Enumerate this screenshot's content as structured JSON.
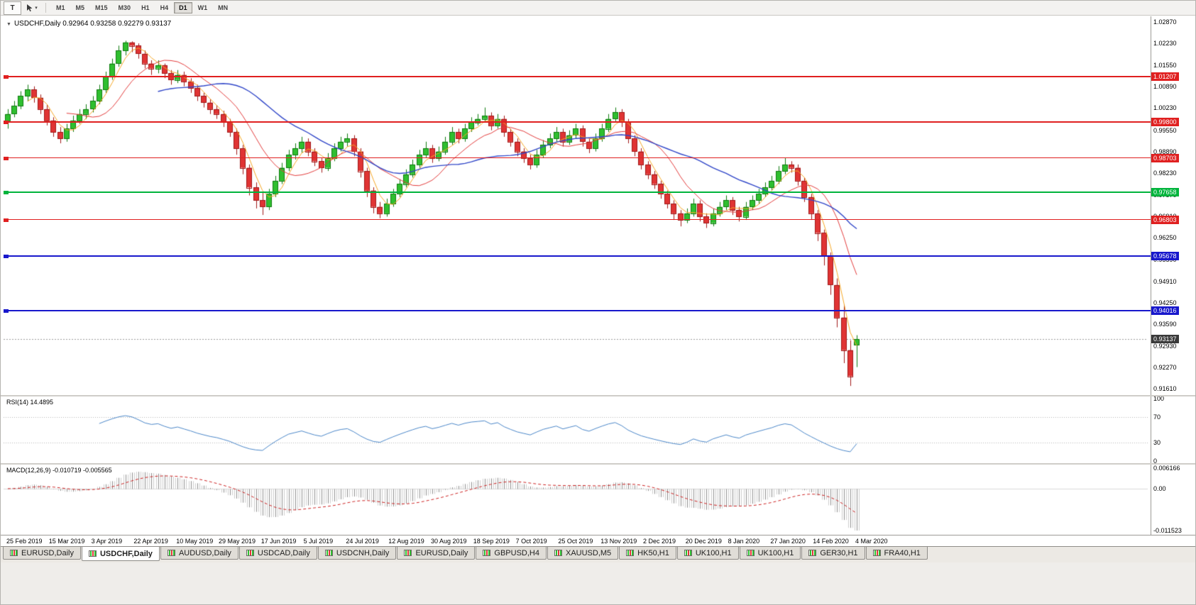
{
  "toolbar": {
    "text_tool_label": "T",
    "timeframes": [
      "M1",
      "M5",
      "M15",
      "M30",
      "H1",
      "H4",
      "D1",
      "W1",
      "MN"
    ],
    "active_timeframe": "D1"
  },
  "chart": {
    "collapse_icon": "▼",
    "header_text": "USDCHF,Daily 0.92964 0.93258 0.92279 0.93137",
    "symbol": "USDCHF",
    "period": "Daily",
    "open": "0.92964",
    "high": "0.93258",
    "low": "0.92279",
    "close": "0.93137",
    "price_axis": [
      "1.02870",
      "1.02230",
      "1.01550",
      "1.00890",
      "1.00230",
      "0.99550",
      "0.98890",
      "0.98230",
      "0.97570",
      "0.96910",
      "0.96250",
      "0.95590",
      "0.94910",
      "0.94250",
      "0.93590",
      "0.92930",
      "0.92270",
      "0.91610"
    ],
    "hlines": [
      {
        "price": 1.01207,
        "label": "1.01207",
        "color": "#e02020",
        "thickness": 2
      },
      {
        "price": 0.998,
        "label": "0.99800",
        "color": "#e02020",
        "thickness": 2
      },
      {
        "price": 0.98703,
        "label": "0.98703",
        "color": "#e02020",
        "thickness": 1
      },
      {
        "price": 0.97658,
        "label": "0.97658",
        "color": "#00b43c",
        "thickness": 2
      },
      {
        "price": 0.96803,
        "label": "0.96803",
        "color": "#e02020",
        "thickness": 1
      },
      {
        "price": 0.95678,
        "label": "0.95678",
        "color": "#1818cc",
        "thickness": 2
      },
      {
        "price": 0.94016,
        "label": "0.94016",
        "color": "#1818cc",
        "thickness": 2
      }
    ],
    "current_price": {
      "value": 0.93137,
      "label": "0.93137",
      "color": "#3a3a3a"
    },
    "colors": {
      "bull": "#2fbf2f",
      "bear": "#e03434",
      "candle_border_up": "#0e7a0e",
      "candle_border_down": "#a01818",
      "ma_fast": "#f5a623",
      "ma_medium": "#e23b3b",
      "ma_slow": "#3046c8",
      "rsi_line": "#4a86c8",
      "macd_hist": "#8e8e8e",
      "macd_signal": "#cc2222"
    }
  },
  "rsi": {
    "header": "RSI(14) 14.4895",
    "axis": [
      "100",
      "70",
      "30",
      "0"
    ],
    "levels": [
      70,
      30
    ]
  },
  "macd": {
    "header": "MACD(12,26,9) -0.010719 -0.005565",
    "axis": [
      "0.006166",
      "0.00",
      "-0.011523"
    ]
  },
  "tabs": [
    "EURUSD,Daily",
    "USDCHF,Daily",
    "AUDUSD,Daily",
    "USDCAD,Daily",
    "USDCNH,Daily",
    "EURUSD,Daily",
    "GBPUSD,H4",
    "XAUUSD,M5",
    "HK50,H1",
    "UK100,H1",
    "UK100,H1",
    "GER30,H1",
    "FRA40,H1"
  ],
  "active_tab": "USDCHF,Daily",
  "chart_data": {
    "type": "candlestick",
    "title": "USDCHF Daily",
    "x_labels": [
      "25 Feb 2019",
      "15 Mar 2019",
      "3 Apr 2019",
      "22 Apr 2019",
      "10 May 2019",
      "29 May 2019",
      "17 Jun 2019",
      "5 Jul 2019",
      "24 Jul 2019",
      "12 Aug 2019",
      "30 Aug 2019",
      "18 Sep 2019",
      "7 Oct 2019",
      "25 Oct 2019",
      "13 Nov 2019",
      "2 Dec 2019",
      "20 Dec 2019",
      "8 Jan 2020",
      "27 Jan 2020",
      "14 Feb 2020",
      "4 Mar 2020"
    ],
    "ylim": [
      0.9142,
      1.0305
    ],
    "candles": [
      [
        0.9985,
        1.002,
        0.996,
        1.0005
      ],
      [
        1.0005,
        1.0045,
        0.9995,
        1.003
      ],
      [
        1.003,
        1.0075,
        1.002,
        1.006
      ],
      [
        1.006,
        1.0095,
        1.0045,
        1.008
      ],
      [
        1.008,
        1.009,
        1.004,
        1.0055
      ],
      [
        1.0055,
        1.0065,
        1.0005,
        1.002
      ],
      [
        1.002,
        1.0035,
        0.997,
        0.9985
      ],
      [
        0.9985,
        0.9995,
        0.9935,
        0.995
      ],
      [
        0.995,
        0.9965,
        0.9915,
        0.993
      ],
      [
        0.993,
        0.9975,
        0.992,
        0.996
      ],
      [
        0.996,
        1.0,
        0.995,
        0.9985
      ],
      [
        0.9985,
        1.002,
        0.9975,
        1.0005
      ],
      [
        1.0005,
        1.0035,
        0.999,
        1.002
      ],
      [
        1.002,
        1.006,
        1.001,
        1.0045
      ],
      [
        1.0045,
        1.0095,
        1.0035,
        1.008
      ],
      [
        1.008,
        1.0135,
        1.007,
        1.012
      ],
      [
        1.012,
        1.0175,
        1.011,
        1.016
      ],
      [
        1.016,
        1.0215,
        1.015,
        1.02
      ],
      [
        1.02,
        1.023,
        1.0185,
        1.0225
      ],
      [
        1.0225,
        1.0228,
        1.0195,
        1.0215
      ],
      [
        1.0215,
        1.0222,
        1.0175,
        1.019
      ],
      [
        1.019,
        1.02,
        1.0145,
        1.016
      ],
      [
        1.016,
        1.017,
        1.0125,
        1.0145
      ],
      [
        1.0145,
        1.017,
        1.013,
        1.0155
      ],
      [
        1.0155,
        1.016,
        1.0115,
        1.013
      ],
      [
        1.013,
        1.014,
        1.0095,
        1.011
      ],
      [
        1.011,
        1.014,
        1.01,
        1.0125
      ],
      [
        1.0125,
        1.0135,
        1.009,
        1.0105
      ],
      [
        1.0105,
        1.0115,
        1.007,
        1.0085
      ],
      [
        1.0085,
        1.0095,
        1.0045,
        1.006
      ],
      [
        1.006,
        1.007,
        1.0025,
        1.004
      ],
      [
        1.004,
        1.005,
        1.0005,
        1.002
      ],
      [
        1.002,
        1.0032,
        0.999,
        1.0005
      ],
      [
        1.0005,
        1.0015,
        0.9965,
        0.998
      ],
      [
        0.998,
        0.999,
        0.9935,
        0.995
      ],
      [
        0.995,
        0.996,
        0.988,
        0.99
      ],
      [
        0.99,
        0.991,
        0.982,
        0.984
      ],
      [
        0.984,
        0.985,
        0.9755,
        0.978
      ],
      [
        0.978,
        0.9795,
        0.9715,
        0.974
      ],
      [
        0.974,
        0.9765,
        0.9695,
        0.972
      ],
      [
        0.972,
        0.9775,
        0.971,
        0.976
      ],
      [
        0.976,
        0.9815,
        0.975,
        0.98
      ],
      [
        0.98,
        0.9855,
        0.979,
        0.984
      ],
      [
        0.984,
        0.9895,
        0.983,
        0.988
      ],
      [
        0.988,
        0.9915,
        0.9865,
        0.99
      ],
      [
        0.99,
        0.9935,
        0.9885,
        0.992
      ],
      [
        0.992,
        0.993,
        0.9875,
        0.989
      ],
      [
        0.989,
        0.99,
        0.9845,
        0.986
      ],
      [
        0.986,
        0.987,
        0.9825,
        0.984
      ],
      [
        0.984,
        0.9885,
        0.983,
        0.987
      ],
      [
        0.987,
        0.9915,
        0.986,
        0.99
      ],
      [
        0.99,
        0.9935,
        0.989,
        0.992
      ],
      [
        0.992,
        0.9945,
        0.9905,
        0.993
      ],
      [
        0.993,
        0.994,
        0.9875,
        0.989
      ],
      [
        0.989,
        0.99,
        0.981,
        0.983
      ],
      [
        0.983,
        0.984,
        0.975,
        0.977
      ],
      [
        0.977,
        0.978,
        0.97,
        0.972
      ],
      [
        0.972,
        0.9735,
        0.9685,
        0.97
      ],
      [
        0.97,
        0.9745,
        0.969,
        0.973
      ],
      [
        0.973,
        0.9775,
        0.972,
        0.976
      ],
      [
        0.976,
        0.9805,
        0.975,
        0.979
      ],
      [
        0.979,
        0.9835,
        0.978,
        0.982
      ],
      [
        0.982,
        0.9865,
        0.981,
        0.985
      ],
      [
        0.985,
        0.9895,
        0.984,
        0.988
      ],
      [
        0.988,
        0.992,
        0.987,
        0.99
      ],
      [
        0.99,
        0.991,
        0.9855,
        0.987
      ],
      [
        0.987,
        0.9905,
        0.986,
        0.989
      ],
      [
        0.989,
        0.9935,
        0.988,
        0.992
      ],
      [
        0.992,
        0.9965,
        0.991,
        0.995
      ],
      [
        0.995,
        0.996,
        0.9915,
        0.993
      ],
      [
        0.993,
        0.9975,
        0.992,
        0.996
      ],
      [
        0.996,
        0.9995,
        0.995,
        0.998
      ],
      [
        0.998,
        1.0005,
        0.997,
        0.999
      ],
      [
        0.999,
        1.0025,
        0.998,
        1.0
      ],
      [
        1.0,
        1.001,
        0.9955,
        0.997
      ],
      [
        0.997,
        1.0005,
        0.996,
        0.999
      ],
      [
        0.999,
        1.0,
        0.9935,
        0.995
      ],
      [
        0.995,
        0.996,
        0.9905,
        0.992
      ],
      [
        0.992,
        0.993,
        0.9875,
        0.989
      ],
      [
        0.989,
        0.99,
        0.9855,
        0.987
      ],
      [
        0.987,
        0.988,
        0.9835,
        0.985
      ],
      [
        0.985,
        0.9895,
        0.984,
        0.988
      ],
      [
        0.988,
        0.9925,
        0.987,
        0.991
      ],
      [
        0.991,
        0.9945,
        0.99,
        0.993
      ],
      [
        0.993,
        0.9965,
        0.992,
        0.995
      ],
      [
        0.995,
        0.996,
        0.9905,
        0.992
      ],
      [
        0.992,
        0.9955,
        0.991,
        0.994
      ],
      [
        0.994,
        0.9975,
        0.993,
        0.996
      ],
      [
        0.996,
        0.997,
        0.9905,
        0.992
      ],
      [
        0.992,
        0.993,
        0.9885,
        0.99
      ],
      [
        0.99,
        0.9945,
        0.989,
        0.993
      ],
      [
        0.993,
        0.9975,
        0.992,
        0.996
      ],
      [
        0.996,
        1.0005,
        0.995,
        0.999
      ],
      [
        0.999,
        1.0025,
        0.998,
        1.001
      ],
      [
        1.001,
        1.002,
        0.9965,
        0.998
      ],
      [
        0.998,
        0.999,
        0.9915,
        0.993
      ],
      [
        0.993,
        0.994,
        0.9875,
        0.989
      ],
      [
        0.989,
        0.99,
        0.9835,
        0.985
      ],
      [
        0.985,
        0.986,
        0.9805,
        0.982
      ],
      [
        0.982,
        0.983,
        0.9775,
        0.979
      ],
      [
        0.979,
        0.98,
        0.9745,
        0.976
      ],
      [
        0.976,
        0.977,
        0.9715,
        0.973
      ],
      [
        0.973,
        0.974,
        0.968,
        0.97
      ],
      [
        0.97,
        0.971,
        0.966,
        0.968
      ],
      [
        0.968,
        0.9715,
        0.967,
        0.97
      ],
      [
        0.97,
        0.9745,
        0.969,
        0.973
      ],
      [
        0.973,
        0.974,
        0.9675,
        0.969
      ],
      [
        0.969,
        0.97,
        0.9655,
        0.967
      ],
      [
        0.967,
        0.9715,
        0.966,
        0.97
      ],
      [
        0.97,
        0.9735,
        0.969,
        0.972
      ],
      [
        0.972,
        0.9755,
        0.971,
        0.974
      ],
      [
        0.974,
        0.975,
        0.9695,
        0.971
      ],
      [
        0.971,
        0.972,
        0.9675,
        0.969
      ],
      [
        0.969,
        0.9735,
        0.968,
        0.972
      ],
      [
        0.972,
        0.9755,
        0.971,
        0.974
      ],
      [
        0.974,
        0.9775,
        0.973,
        0.976
      ],
      [
        0.976,
        0.9795,
        0.975,
        0.978
      ],
      [
        0.978,
        0.9815,
        0.977,
        0.98
      ],
      [
        0.98,
        0.9845,
        0.979,
        0.983
      ],
      [
        0.983,
        0.987,
        0.982,
        0.985
      ],
      [
        0.985,
        0.986,
        0.9825,
        0.984
      ],
      [
        0.984,
        0.985,
        0.9785,
        0.98
      ],
      [
        0.98,
        0.981,
        0.9735,
        0.975
      ],
      [
        0.975,
        0.976,
        0.968,
        0.97
      ],
      [
        0.97,
        0.971,
        0.9615,
        0.964
      ],
      [
        0.964,
        0.965,
        0.954,
        0.957
      ],
      [
        0.957,
        0.958,
        0.945,
        0.948
      ],
      [
        0.948,
        0.95,
        0.935,
        0.938
      ],
      [
        0.938,
        0.942,
        0.924,
        0.928
      ],
      [
        0.928,
        0.931,
        0.917,
        0.92
      ],
      [
        0.92964,
        0.93258,
        0.92279,
        0.93137
      ]
    ],
    "moving_averages": [
      {
        "name": "fast",
        "color": "#f5a623",
        "period": 4
      },
      {
        "name": "medium",
        "color": "#e23b3b",
        "period": 10
      },
      {
        "name": "slow",
        "color": "#3046c8",
        "period": 24
      }
    ],
    "horizontal_levels": [
      1.01207,
      0.998,
      0.98703,
      0.97658,
      0.96803,
      0.95678,
      0.94016
    ],
    "last_quote": {
      "open": 0.92964,
      "high": 0.93258,
      "low": 0.92279,
      "close": 0.93137
    },
    "indicators": [
      {
        "name": "RSI",
        "period": 14,
        "current": 14.4895,
        "scale": [
          0,
          100
        ],
        "levels": [
          30,
          70
        ]
      },
      {
        "name": "MACD",
        "params": [
          12,
          26,
          9
        ],
        "current": [
          -0.010719,
          -0.005565
        ],
        "scale": [
          -0.011523,
          0.006166
        ]
      }
    ]
  }
}
